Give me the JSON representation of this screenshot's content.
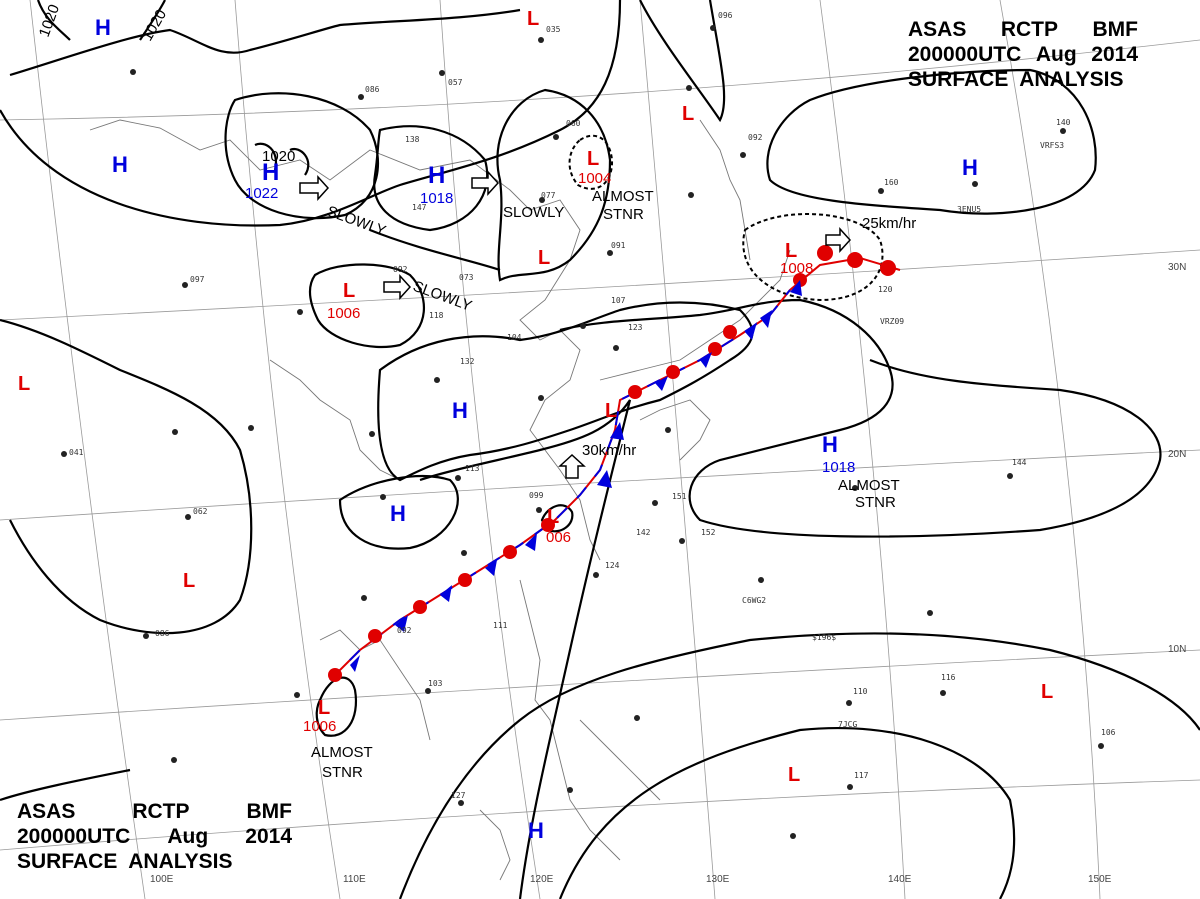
{
  "title_top": {
    "line1": [
      "ASAS",
      "RCTP",
      "BMF"
    ],
    "line2": [
      "200000UTC",
      "Aug",
      "2014"
    ],
    "line3": "SURFACE  ANALYSIS"
  },
  "title_bottom": {
    "line1": [
      "ASAS",
      "RCTP",
      "BMF"
    ],
    "line2": [
      "200000UTC",
      "Aug",
      "2014"
    ],
    "line3": "SURFACE  ANALYSIS"
  },
  "isobar_labels": [
    "1020",
    "1020",
    "1020"
  ],
  "highs": [
    {
      "symbol": "H"
    },
    {
      "symbol": "H"
    },
    {
      "symbol": "H"
    },
    {
      "symbol": "H"
    },
    {
      "symbol": "H"
    },
    {
      "symbol": "H"
    },
    {
      "symbol": "H"
    },
    {
      "symbol": "H"
    }
  ],
  "high_pressures": [
    "1022",
    "1018",
    "1018"
  ],
  "lows": [
    {
      "symbol": "L"
    },
    {
      "symbol": "L"
    },
    {
      "symbol": "L"
    },
    {
      "symbol": "L"
    },
    {
      "symbol": "L"
    },
    {
      "symbol": "L"
    },
    {
      "symbol": "L"
    },
    {
      "symbol": "L"
    },
    {
      "symbol": "L"
    },
    {
      "symbol": "L"
    },
    {
      "symbol": "L"
    },
    {
      "symbol": "L"
    },
    {
      "symbol": "L"
    }
  ],
  "low_pressures": [
    "1004",
    "1006",
    "1008",
    "006",
    "1006"
  ],
  "annotations": {
    "slowly": "SLOWLY",
    "almost": "ALMOST",
    "stnr": "STNR",
    "speed_25": "25km/hr",
    "speed_30": "30km/hr"
  },
  "longitude_labels": [
    "100E",
    "110E",
    "120E",
    "130E",
    "140E",
    "150E"
  ],
  "latitude_labels": [
    "30N",
    "20N",
    "10N"
  ],
  "station_samples": [
    "035",
    "086",
    "138",
    "147",
    "060",
    "077",
    "091",
    "107",
    "123",
    "099",
    "113",
    "151",
    "142",
    "152",
    "124",
    "111",
    "092",
    "103",
    "127",
    "110",
    "116",
    "106",
    "117",
    "144",
    "062",
    "041",
    "086",
    "097",
    "057",
    "096",
    "092",
    "160",
    "140",
    "120",
    "073",
    "092",
    "118",
    "104",
    "132"
  ],
  "station_codes": [
    "3ENU5",
    "C6WG2",
    "$196$",
    "7JCG",
    "VRFS3",
    "VRZ09"
  ]
}
